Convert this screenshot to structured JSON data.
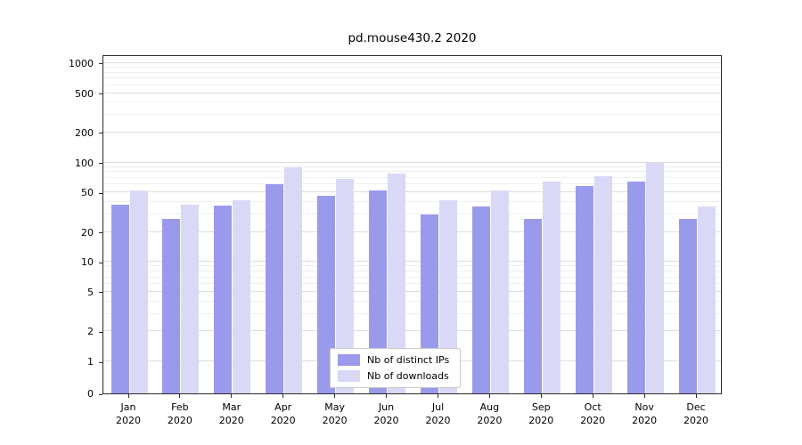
{
  "chart_data": {
    "type": "bar",
    "title": "pd.mouse430.2 2020",
    "categories": [
      "Jan",
      "Feb",
      "Mar",
      "Apr",
      "May",
      "Jun",
      "Jul",
      "Aug",
      "Sep",
      "Oct",
      "Nov",
      "Dec"
    ],
    "year_label": "2020",
    "series": [
      {
        "name": "Nb of distinct IPs",
        "color": "#9a9aec",
        "values": [
          38,
          27,
          37,
          60,
          46,
          52,
          30,
          36,
          27,
          58,
          65,
          27
        ]
      },
      {
        "name": "Nb of downloads",
        "color": "#d9d9f7",
        "values": [
          52,
          38,
          42,
          90,
          68,
          78,
          42,
          52,
          65,
          73,
          100,
          36
        ]
      }
    ],
    "yscale": "symlog",
    "yticks": [
      0,
      1,
      2,
      5,
      10,
      20,
      50,
      100,
      200,
      500,
      1000
    ],
    "yminorticks": [
      3,
      4,
      6,
      7,
      8,
      9,
      30,
      40,
      60,
      70,
      80,
      90,
      300,
      400,
      600,
      700,
      800,
      900
    ],
    "ylim": [
      0,
      1200
    ],
    "grid": true,
    "legend_position": "lower center"
  }
}
